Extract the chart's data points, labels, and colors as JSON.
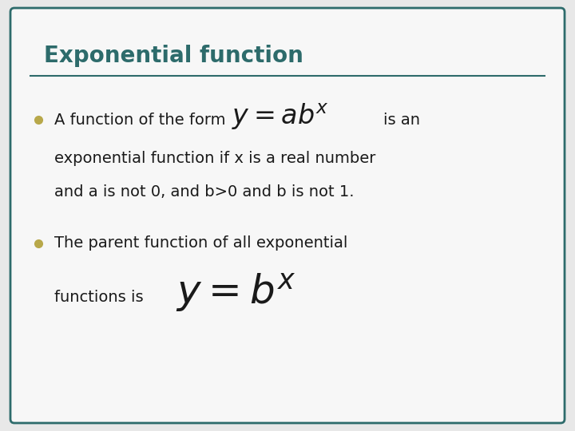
{
  "title": "Exponential function",
  "title_color": "#2d6b6b",
  "title_fontsize": 20,
  "background_color": "#e8e8e8",
  "card_color": "#f7f7f7",
  "border_color": "#2d6b6b",
  "border_linewidth": 2.0,
  "line_color": "#2d6b6b",
  "bullet_color": "#b8a84a",
  "bullet1_line1_text": "A function of the form ",
  "bullet1_formula": "$y = ab^x$",
  "bullet1_suffix": " is an",
  "bullet1_line2": "exponential function if x is a real number",
  "bullet1_line3": "and a is not 0, and b>0 and b is not 1.",
  "bullet2_line1": "The parent function of all exponential",
  "bullet2_line2_prefix": "functions is ",
  "bullet2_formula": "$y = b^x$",
  "text_color": "#1a1a1a",
  "text_fontsize": 14,
  "formula1_fontsize": 24,
  "formula2_fontsize": 36,
  "figwidth": 7.2,
  "figheight": 5.4,
  "dpi": 100
}
